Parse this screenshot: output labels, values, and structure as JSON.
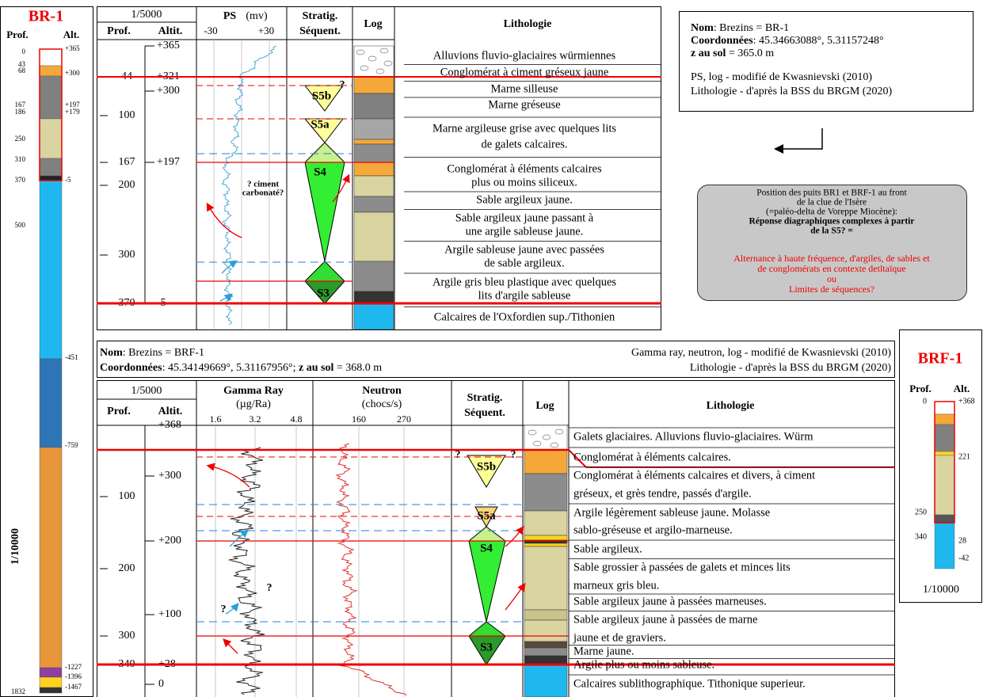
{
  "br1_column": {
    "title": "BR-1",
    "prof": "Prof.",
    "alt": "Alt.",
    "depths": [
      "0",
      "43",
      "68",
      "167",
      "186",
      "250",
      "310",
      "370",
      "500",
      "1832"
    ],
    "altitudes": [
      "+365",
      "+300",
      "+197",
      "+179",
      "-5",
      "-451",
      "-759",
      "-1227",
      "-1396",
      "-1467"
    ],
    "scale": "1/10000"
  },
  "br1_panel": {
    "scale": "1/5000",
    "prof": "Prof.",
    "altit": "Altit.",
    "ps": "PS",
    "ps_unit": "(mv)",
    "ps_ticks": [
      "-30",
      "+30"
    ],
    "stratig": "Stratig.",
    "sequent": "Séquent.",
    "log": "Log",
    "lithologie": "Lithologie",
    "depths": [
      "44",
      "100",
      "167",
      "200",
      "300",
      "370"
    ],
    "altitudes": [
      "+365",
      "+321",
      "+300",
      "+197",
      "-5"
    ],
    "sequences": [
      "S5b",
      "S5a",
      "S4",
      "S3"
    ],
    "annotations": [
      "?",
      "? ciment",
      "carbonaté?"
    ],
    "lithology": [
      [
        "Alluvions fluvio-glaciaires würmiennes"
      ],
      [
        "Conglomérat à ciment gréseux jaune"
      ],
      [
        "Marne silleuse"
      ],
      [
        "Marne gréseuse"
      ],
      [
        "Marne argileuse grise avec quelques lits",
        "de galets calcaires."
      ],
      [
        "Conglomérat à éléments calcaires",
        "plus ou moins siliceux."
      ],
      [
        "Sable argileux jaune."
      ],
      [
        "Sable argileux jaune passant à",
        "une argile sableuse jaune."
      ],
      [
        "Argile sableuse jaune avec passées",
        "de sable argileux."
      ],
      [
        "Argile gris bleu plastique avec quelques",
        "lits d'argile sableuse"
      ],
      [
        "Calcaires de l'Oxfordien sup./Tithonien"
      ]
    ]
  },
  "br1_info": {
    "name_label": "Nom",
    "name": ": Brezins = BR-1",
    "coord_label": "Coordonnées",
    "coord": ": 45.34663088°, 5.31157248°",
    "zsol_label": "z au sol",
    "zsol": " = 365.0 m",
    "source_log": "PS, log - modifié de Kwasnievski (2010)",
    "source_litho": "Lithologie - d'après la BSS du BRGM (2020)"
  },
  "note": {
    "lines": [
      "Position des puits BR1 et BRF-1 au front",
      "de la clue de l'Isère",
      "(=paléo-delta de Voreppe Miocène):"
    ],
    "bold_lines": [
      "Réponse diagraphiques complexes à partir",
      "de la S5? ="
    ],
    "red_lines": [
      "Alternance à haute fréquence, d'argiles, de sables et",
      "de conglomérats en contexte detltaïque",
      "ou",
      "Limites de séquences?"
    ]
  },
  "brf1_header": {
    "name_label": "Nom",
    "name": ": Brezins = BRF-1",
    "coord_label": "Coordonnées",
    "coord": ": 45.34149669°, 5.31167956°; ",
    "zsol_label": "z au sol",
    "zsol": " = 368.0 m",
    "source_log": "Gamma ray, neutron, log - modifié de Kwasnievski (2010)",
    "source_litho": "Lithologie - d'après la BSS du BRGM (2020)"
  },
  "brf1_panel": {
    "scale": "1/5000",
    "prof": "Prof.",
    "altit": "Altit.",
    "gamma": "Gamma Ray",
    "gamma_unit": "(µg/Ra)",
    "gamma_ticks": [
      "1.6",
      "3.2",
      "4.8"
    ],
    "neutron": "Neutron",
    "neutron_unit": "(chocs/s)",
    "neutron_ticks": [
      "160",
      "270"
    ],
    "stratig": "Stratig.",
    "sequent": "Séquent.",
    "log": "Log",
    "lithologie": "Lithologie",
    "depths": [
      "100",
      "200",
      "300",
      "340"
    ],
    "altitudes": [
      "+368",
      "+300",
      "+200",
      "+100",
      "+28",
      "0"
    ],
    "sequences": [
      "S5b",
      "S5a",
      "S4",
      "S3"
    ],
    "annotations": [
      "?",
      "?",
      "?",
      "?"
    ],
    "lithology": [
      [
        "Galets glaciaires. Alluvions fluvio-glaciaires. Würm"
      ],
      [
        "Conglomérat à éléments calcaires."
      ],
      [
        "Conglomérat à éléments calcaires et divers, à ciment",
        "gréseux, et grès tendre, passés d'argile."
      ],
      [
        "Argile légèrement sableuse jaune. Molasse",
        "sablo-gréseuse et argilo-marneuse."
      ],
      [
        "Sable argileux."
      ],
      [
        "Sable grossier à passées de galets et minces lits",
        "marneux gris bleu."
      ],
      [
        "Sable argileux jaune à passées marneuses."
      ],
      [
        "Sable argileux jaune à passées de marne",
        "jaune et de graviers."
      ],
      [
        "Marne jaune."
      ],
      [
        "Argile plus ou moins sableuse."
      ],
      [
        "Calcaires sublithographique. Tithonique superieur."
      ]
    ]
  },
  "brf1_column": {
    "title": "BRF-1",
    "prof": "Prof.",
    "alt": "Alt.",
    "depths": [
      "0",
      "250",
      "340"
    ],
    "altitudes": [
      "+368",
      "221",
      "28",
      "-42"
    ],
    "scale": "1/10000"
  }
}
